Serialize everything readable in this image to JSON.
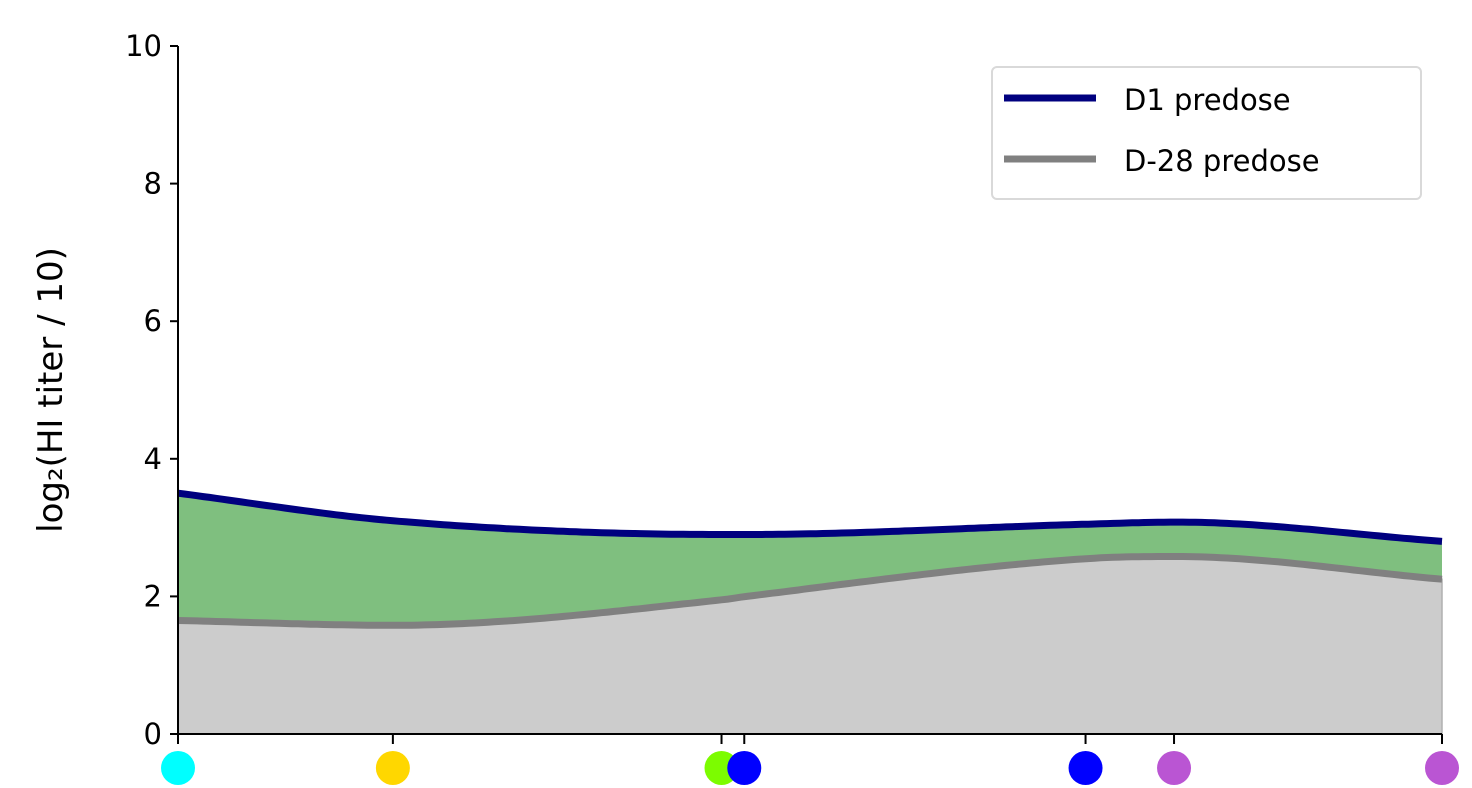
{
  "chart_data": {
    "type": "area",
    "title": "",
    "xlabel": "",
    "ylabel": "log₂(HI titer / 10)",
    "ylim": [
      0,
      10
    ],
    "yticks": [
      0,
      2,
      4,
      6,
      8,
      10
    ],
    "xlim": [
      0,
      1
    ],
    "series": [
      {
        "name": "D1 predose",
        "color": "#00007f",
        "x": [
          0,
          0.17,
          0.43,
          0.45,
          0.72,
          0.79,
          1
        ],
        "values": [
          3.5,
          3.1,
          2.9,
          2.9,
          3.05,
          3.08,
          2.8
        ]
      },
      {
        "name": "D-28 predose",
        "color": "#808080",
        "x": [
          0,
          0.17,
          0.43,
          0.45,
          0.72,
          0.79,
          1
        ],
        "values": [
          1.65,
          1.58,
          1.95,
          2.0,
          2.55,
          2.58,
          2.25
        ]
      }
    ],
    "fill_between_color": "#7fbf7f",
    "fill_below_color": "#cccccc",
    "markers": [
      {
        "x": 0.0,
        "color": "#00ffff"
      },
      {
        "x": 0.17,
        "color": "#ffd700"
      },
      {
        "x": 0.43,
        "color": "#7cfc00"
      },
      {
        "x": 0.448,
        "color": "#0000ff"
      },
      {
        "x": 0.718,
        "color": "#0000ff"
      },
      {
        "x": 0.788,
        "color": "#ba55d3"
      },
      {
        "x": 1.0,
        "color": "#ba55d3"
      }
    ],
    "legend": {
      "placement": "top-right",
      "entries": [
        "D1 predose",
        "D-28 predose"
      ]
    },
    "grid": false
  }
}
